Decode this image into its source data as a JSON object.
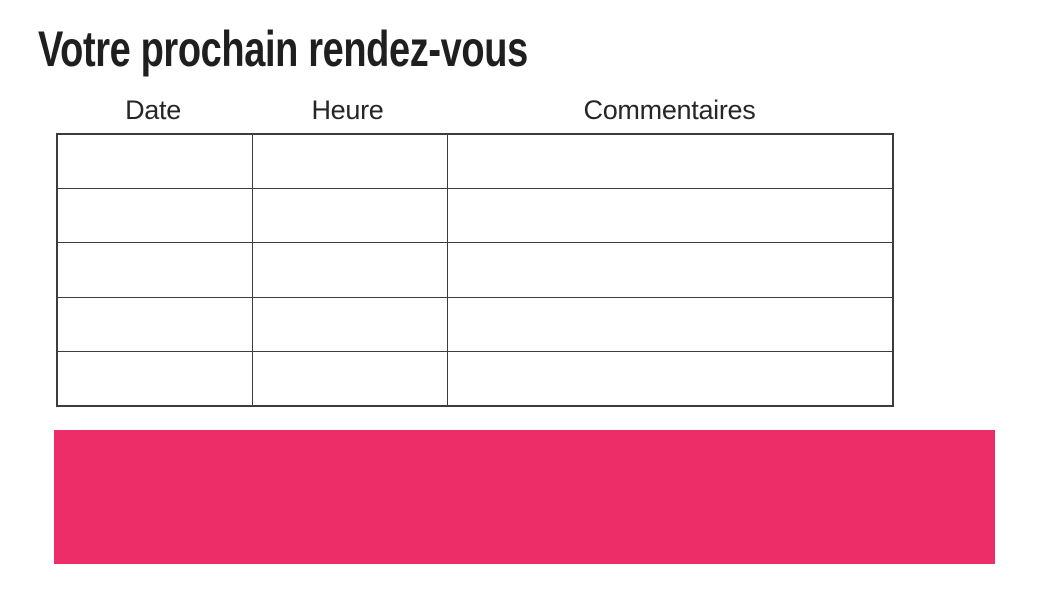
{
  "title": "Votre prochain rendez-vous",
  "table": {
    "columns": [
      "Date",
      "Heure",
      "Commentaires"
    ],
    "row_count": 5,
    "rows": [
      [
        "",
        "",
        ""
      ],
      [
        "",
        "",
        ""
      ],
      [
        "",
        "",
        ""
      ],
      [
        "",
        "",
        ""
      ],
      [
        "",
        "",
        ""
      ]
    ]
  },
  "banner": {
    "text": ""
  },
  "colors": {
    "text": "#1f1f1f",
    "table_border": "#3c3c3c",
    "accent": "#ED2D68"
  }
}
